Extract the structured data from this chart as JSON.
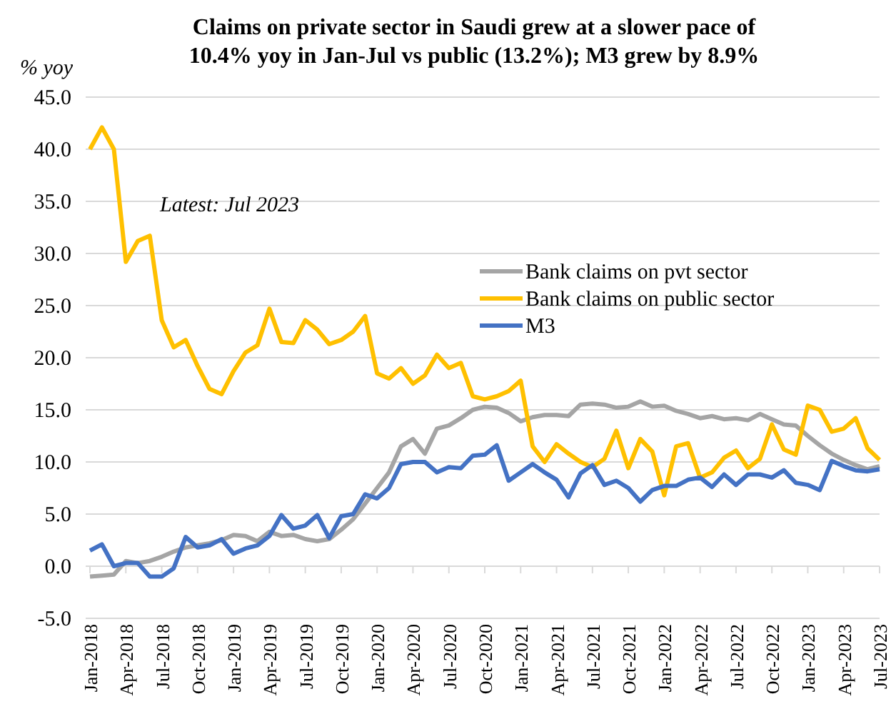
{
  "chart_data": {
    "type": "line",
    "title": "Claims on private sector in Saudi grew at a slower pace of 10.4% yoy in Jan-Jul vs public (13.2%); M3 grew by 8.9%",
    "ylabel": "% yoy",
    "annotations": [
      "Latest: Jul 2023"
    ],
    "categories": [
      "Jan-2018",
      null,
      null,
      "Apr-2018",
      null,
      null,
      "Jul-2018",
      null,
      null,
      "Oct-2018",
      null,
      null,
      "Jan-2019",
      null,
      null,
      "Apr-2019",
      null,
      null,
      "Jul-2019",
      null,
      null,
      "Oct-2019",
      null,
      null,
      "Jan-2020",
      null,
      null,
      "Apr-2020",
      null,
      null,
      "Jul-2020",
      null,
      null,
      "Oct-2020",
      null,
      null,
      "Jan-2021",
      null,
      null,
      "Apr-2021",
      null,
      null,
      "Jul-2021",
      null,
      null,
      "Oct-2021",
      null,
      null,
      "Jan-2022",
      null,
      null,
      "Apr-2022",
      null,
      null,
      "Jul-2022",
      null,
      null,
      "Oct-2022",
      null,
      null,
      "Jan-2023",
      null,
      null,
      "Apr-2023",
      null,
      null,
      "Jul-2023"
    ],
    "series": [
      {
        "name": "Bank claims on pvt sector",
        "color": "#a5a5a5",
        "values": [
          -1.0,
          -0.9,
          -0.8,
          0.5,
          0.3,
          0.5,
          0.9,
          1.4,
          1.8,
          2.0,
          2.2,
          2.5,
          3.0,
          2.9,
          2.4,
          3.3,
          2.9,
          3.0,
          2.6,
          2.4,
          2.6,
          3.5,
          4.5,
          6.0,
          7.5,
          9.0,
          11.5,
          12.2,
          10.8,
          13.2,
          13.5,
          14.2,
          15.0,
          15.3,
          15.2,
          14.7,
          13.9,
          14.3,
          14.5,
          14.5,
          14.4,
          15.5,
          15.6,
          15.5,
          15.2,
          15.3,
          15.8,
          15.3,
          15.4,
          14.9,
          14.6,
          14.2,
          14.4,
          14.1,
          14.2,
          14.0,
          14.6,
          14.1,
          13.6,
          13.5,
          12.5,
          11.6,
          10.8,
          10.2,
          9.7,
          9.3,
          9.6
        ]
      },
      {
        "name": "Bank claims on public sector",
        "color": "#ffc000",
        "values": [
          40.0,
          42.1,
          40.0,
          29.2,
          31.2,
          31.7,
          23.6,
          21.0,
          21.7,
          19.2,
          17.0,
          16.5,
          18.7,
          20.5,
          21.2,
          24.7,
          21.5,
          21.4,
          23.6,
          22.7,
          21.3,
          21.7,
          22.5,
          24.0,
          18.5,
          18.0,
          19.0,
          17.5,
          18.3,
          20.3,
          19.0,
          19.5,
          16.3,
          16.0,
          16.3,
          16.8,
          17.8,
          11.5,
          10.0,
          11.7,
          10.8,
          10.0,
          9.5,
          10.3,
          13.0,
          9.4,
          12.2,
          11.0,
          6.8,
          11.5,
          11.8,
          8.5,
          9.0,
          10.4,
          11.1,
          9.4,
          10.3,
          13.6,
          11.2,
          10.7,
          15.4,
          15.0,
          12.9,
          13.2,
          14.2,
          11.3,
          10.2
        ]
      },
      {
        "name": "M3",
        "color": "#4472c4",
        "values": [
          1.5,
          2.1,
          0.0,
          0.3,
          0.3,
          -1.0,
          -1.0,
          -0.2,
          2.8,
          1.8,
          2.0,
          2.6,
          1.2,
          1.7,
          2.0,
          2.9,
          4.9,
          3.6,
          3.9,
          4.9,
          2.7,
          4.8,
          5.0,
          6.9,
          6.5,
          7.5,
          9.8,
          10.0,
          10.0,
          9.0,
          9.5,
          9.4,
          10.6,
          10.7,
          11.6,
          8.2,
          9.0,
          9.8,
          9.0,
          8.3,
          6.6,
          8.9,
          9.7,
          7.8,
          8.2,
          7.5,
          6.2,
          7.3,
          7.7,
          7.7,
          8.3,
          8.5,
          7.6,
          8.8,
          7.8,
          8.8,
          8.8,
          8.5,
          9.2,
          8.0,
          7.8,
          7.3,
          10.1,
          9.6,
          9.2,
          9.1,
          9.3
        ]
      }
    ],
    "ylim": [
      -5,
      45
    ],
    "yticks": [
      {
        "value": -5,
        "label": "-5.0"
      },
      {
        "value": 0,
        "label": "0.0"
      },
      {
        "value": 5,
        "label": "5.0"
      },
      {
        "value": 10,
        "label": "10.0"
      },
      {
        "value": 15,
        "label": "15.0"
      },
      {
        "value": 20,
        "label": "20.0"
      },
      {
        "value": 25,
        "label": "25.0"
      },
      {
        "value": 30,
        "label": "30.0"
      },
      {
        "value": 35,
        "label": "35.0"
      },
      {
        "value": 40,
        "label": "40.0"
      },
      {
        "value": 45,
        "label": "45.0"
      }
    ],
    "grid": "y",
    "legend": "top right",
    "marker": "none",
    "line_style": "solid"
  }
}
